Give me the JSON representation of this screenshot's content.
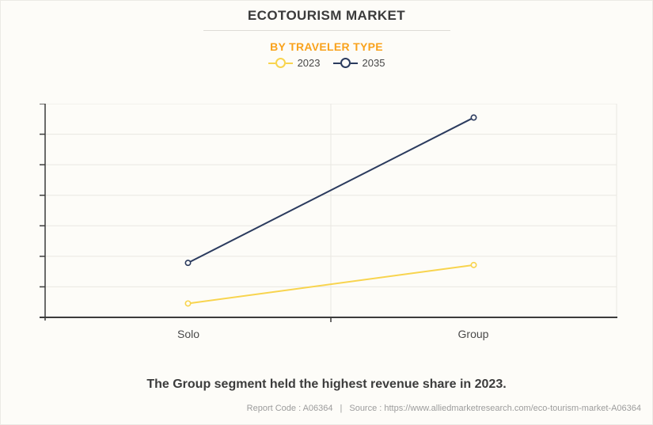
{
  "header": {
    "title": "ECOTOURISM MARKET",
    "subtitle": "BY TRAVELER TYPE"
  },
  "legend": [
    {
      "label": "2023",
      "color": "#F8D44E"
    },
    {
      "label": "2035",
      "color": "#2B3B5E"
    }
  ],
  "chart_data": {
    "type": "line",
    "title": "ECOTOURISM MARKET",
    "subtitle": "BY TRAVELER TYPE",
    "categories": [
      "Solo",
      "Group"
    ],
    "series": [
      {
        "name": "2023",
        "color": "#F8D44E",
        "values": [
          6.5,
          24.5
        ]
      },
      {
        "name": "2035",
        "color": "#2B3B5E",
        "values": [
          25.5,
          93.5
        ]
      }
    ],
    "xlabel": "",
    "ylabel": "",
    "ylim": [
      0,
      100
    ],
    "y_axis_labels_visible": false,
    "grid_divisions": 7,
    "grid": "horizontal",
    "legend_position": "top",
    "note": "Y-axis shows tick marks only (no numeric labels); values are estimated percent of axis maximum"
  },
  "axis_labels": {
    "solo": "Solo",
    "group": "Group"
  },
  "footnote": {
    "headline": "The Group segment held the highest revenue share in 2023."
  },
  "footer": {
    "report_code": "Report Code : A06364",
    "separator": "|",
    "source": "Source : https://www.alliedmarketresearch.com/eco-tourism-market-A06364"
  },
  "colors": {
    "background": "#FDFCF8",
    "accent_orange": "#F9A21C",
    "series_2023": "#F8D44E",
    "series_2035": "#2B3B5E",
    "grid": "#E9E7E2",
    "axis": "#3B3B3B",
    "text_dark": "#3B3B3B",
    "text_muted": "#9C9C9C"
  }
}
